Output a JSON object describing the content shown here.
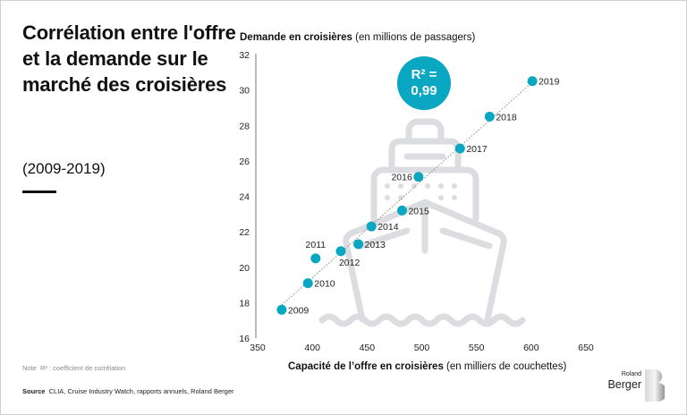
{
  "title": "Corrélation entre l'offre et la demande sur le marché des croisières",
  "subtitle": "(2009-2019)",
  "note": {
    "label": "Note",
    "text": "R² : coefficient de corrélation"
  },
  "source": {
    "label": "Source",
    "text": "CLIA, Cruise Industry Watch, rapports annuels, Roland Berger"
  },
  "logo": {
    "line1": "Roland",
    "line2": "Berger"
  },
  "r2_badge": {
    "line1": "R² =",
    "line2": "0,99"
  },
  "colors": {
    "accent": "#0aa7c2",
    "icon": "#dcdde0",
    "axis": "#777777"
  },
  "chart_data": {
    "type": "scatter",
    "title": "Corrélation entre l'offre et la demande sur le marché des croisières (2009-2019)",
    "ylabel_bold": "Demande en croisières",
    "ylabel_rest": " (en millions de passagers)",
    "xlabel_bold": "Capacité de l’offre en croisières",
    "xlabel_rest": " (en milliers de couchettes)",
    "xlim": [
      350,
      650
    ],
    "ylim": [
      16,
      32
    ],
    "xticks": [
      350,
      400,
      450,
      500,
      550,
      600,
      650
    ],
    "yticks": [
      16,
      18,
      20,
      22,
      24,
      26,
      28,
      30,
      32
    ],
    "grid": false,
    "trendline": "dotted linear fit",
    "annotation": "R² = 0,99",
    "points": [
      {
        "label": "2009",
        "x": 372,
        "y": 17.6
      },
      {
        "label": "2010",
        "x": 396,
        "y": 19.1
      },
      {
        "label": "2011",
        "x": 403,
        "y": 20.5
      },
      {
        "label": "2012",
        "x": 426,
        "y": 20.9
      },
      {
        "label": "2013",
        "x": 442,
        "y": 21.3
      },
      {
        "label": "2014",
        "x": 454,
        "y": 22.3
      },
      {
        "label": "2015",
        "x": 482,
        "y": 23.2
      },
      {
        "label": "2016",
        "x": 497,
        "y": 25.1
      },
      {
        "label": "2017",
        "x": 535,
        "y": 26.7
      },
      {
        "label": "2018",
        "x": 562,
        "y": 28.5
      },
      {
        "label": "2019",
        "x": 601,
        "y": 30.5
      }
    ]
  }
}
